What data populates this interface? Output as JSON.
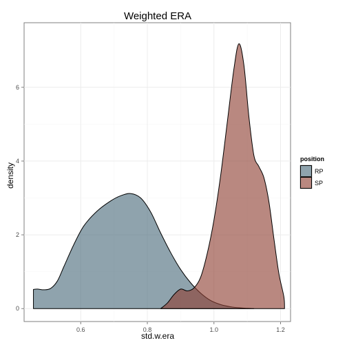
{
  "chart_data": {
    "type": "area",
    "title": "Weighted ERA",
    "xlabel": "std.w.era",
    "ylabel": "density",
    "xlim": [
      0.43,
      1.23
    ],
    "ylim": [
      -0.35,
      7.75
    ],
    "xticks": [
      {
        "value": 0.6,
        "label": "0.6"
      },
      {
        "value": 0.8,
        "label": "0.8"
      },
      {
        "value": 1.0,
        "label": "1.0"
      },
      {
        "value": 1.2,
        "label": "1.2"
      }
    ],
    "yticks": [
      {
        "value": 0,
        "label": "0"
      },
      {
        "value": 2,
        "label": "2"
      },
      {
        "value": 4,
        "label": "4"
      },
      {
        "value": 6,
        "label": "6"
      }
    ],
    "grid": true,
    "legend": {
      "title": "position",
      "placement": "right"
    },
    "series": [
      {
        "name": "RP",
        "color": "#4a6a7a",
        "points": [
          [
            0.458,
            0.52
          ],
          [
            0.47,
            0.53
          ],
          [
            0.49,
            0.51
          ],
          [
            0.51,
            0.55
          ],
          [
            0.53,
            0.75
          ],
          [
            0.55,
            1.15
          ],
          [
            0.58,
            1.75
          ],
          [
            0.61,
            2.25
          ],
          [
            0.65,
            2.65
          ],
          [
            0.69,
            2.92
          ],
          [
            0.72,
            3.06
          ],
          [
            0.75,
            3.12
          ],
          [
            0.78,
            3.0
          ],
          [
            0.81,
            2.62
          ],
          [
            0.84,
            2.05
          ],
          [
            0.87,
            1.52
          ],
          [
            0.9,
            1.06
          ],
          [
            0.93,
            0.7
          ],
          [
            0.96,
            0.42
          ],
          [
            0.99,
            0.22
          ],
          [
            1.02,
            0.11
          ],
          [
            1.05,
            0.05
          ],
          [
            1.08,
            0.02
          ],
          [
            1.1,
            0.01
          ],
          [
            1.12,
            0.0
          ]
        ]
      },
      {
        "name": "SP",
        "color": "#8e3f32",
        "points": [
          [
            0.84,
            0.0
          ],
          [
            0.86,
            0.15
          ],
          [
            0.88,
            0.38
          ],
          [
            0.9,
            0.53
          ],
          [
            0.92,
            0.48
          ],
          [
            0.94,
            0.56
          ],
          [
            0.96,
            0.85
          ],
          [
            0.98,
            1.5
          ],
          [
            1.0,
            2.4
          ],
          [
            1.02,
            3.6
          ],
          [
            1.04,
            5.05
          ],
          [
            1.06,
            6.5
          ],
          [
            1.075,
            7.18
          ],
          [
            1.09,
            6.6
          ],
          [
            1.105,
            5.2
          ],
          [
            1.12,
            4.15
          ],
          [
            1.135,
            3.85
          ],
          [
            1.15,
            3.55
          ],
          [
            1.165,
            2.9
          ],
          [
            1.18,
            1.9
          ],
          [
            1.195,
            0.95
          ],
          [
            1.21,
            0.32
          ],
          [
            1.212,
            0.0
          ]
        ]
      }
    ]
  }
}
